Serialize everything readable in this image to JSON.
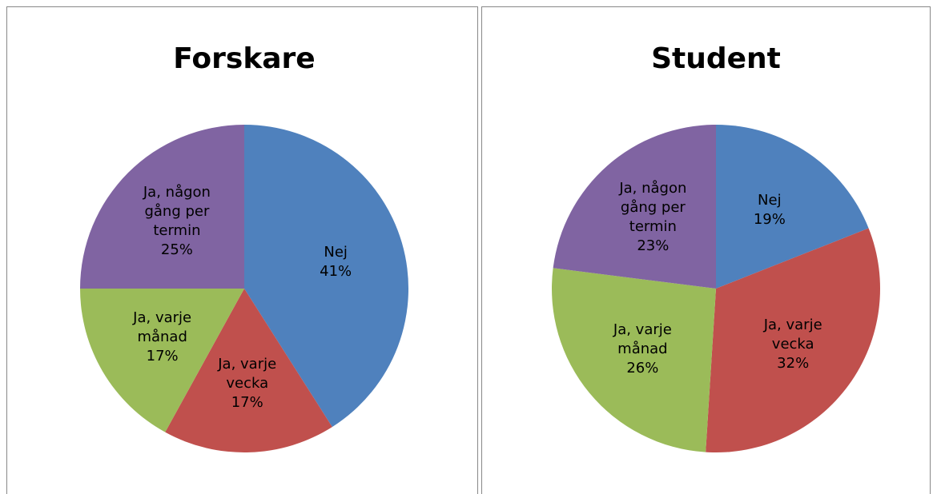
{
  "chart_data": [
    {
      "type": "pie",
      "title": "Forskare",
      "categories": [
        "Nej",
        "Ja, varje vecka",
        "Ja, varje månad",
        "Ja, någon gång per termin"
      ],
      "values": [
        41,
        17,
        17,
        25
      ],
      "value_labels": [
        "41%",
        "17%",
        "17%",
        "25%"
      ],
      "colors": [
        "#4f81bd",
        "#c0504d",
        "#9bbb59",
        "#8064a2"
      ]
    },
    {
      "type": "pie",
      "title": "Student",
      "categories": [
        "Nej",
        "Ja, varje vecka",
        "Ja, varje månad",
        "Ja, någon gång per termin"
      ],
      "values": [
        19,
        32,
        26,
        23
      ],
      "value_labels": [
        "19%",
        "32%",
        "26%",
        "23%"
      ],
      "colors": [
        "#4f81bd",
        "#c0504d",
        "#9bbb59",
        "#8064a2"
      ]
    }
  ]
}
